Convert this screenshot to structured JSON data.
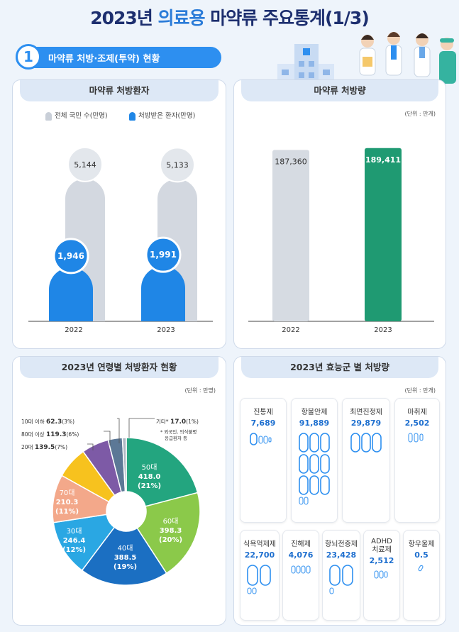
{
  "page": {
    "title_prefix": "2023년",
    "title_highlight": "의료용",
    "title_suffix": "마약류 주요통계(1/3)"
  },
  "section": {
    "number": "1",
    "label": "마약류 처방·조제(투약) 현황"
  },
  "patients": {
    "title": "마약류 처방환자",
    "legend_total": "전체 국민 수(만명)",
    "legend_rx": "처방받은 환자(만명)",
    "years": [
      "2022",
      "2023"
    ],
    "total": [
      "5,144",
      "5,133"
    ],
    "rx": [
      "1,946",
      "1,991"
    ]
  },
  "volume": {
    "title": "마약류 처방량",
    "unit": "(단위 : 만개)",
    "years": [
      "2022",
      "2023"
    ],
    "values": [
      "187,360",
      "189,411"
    ]
  },
  "age": {
    "title": "2023년 연령별 처방환자 현황",
    "unit": "(단위 : 만명)",
    "other_label": "기타*",
    "other_value": "17.0",
    "other_pct": "(1%)",
    "other_note1": "* 외국인, 의식불명",
    "other_note2": "응급환자 등",
    "outside": [
      {
        "label": "10대 이하",
        "value": "62.3",
        "pct": "(3%)"
      },
      {
        "label": "80대 이상",
        "value": "119.3",
        "pct": "(6%)"
      },
      {
        "label": "20대",
        "value": "139.5",
        "pct": "(7%)"
      }
    ],
    "inside": [
      {
        "label": "50대",
        "value": "418.0",
        "pct": "(21%)"
      },
      {
        "label": "60대",
        "value": "398.3",
        "pct": "(20%)"
      },
      {
        "label": "40대",
        "value": "388.5",
        "pct": "(19%)"
      },
      {
        "label": "30대",
        "value": "246.4",
        "pct": "(12%)"
      },
      {
        "label": "70대",
        "value": "210.3",
        "pct": "(11%)"
      }
    ]
  },
  "efficacy": {
    "title": "2023년 효능군 별 처방량",
    "unit": "(단위 : 만개)",
    "items": [
      {
        "name": "진통제",
        "value": "7,689"
      },
      {
        "name": "항불안제",
        "value": "91,889"
      },
      {
        "name": "최면진정제",
        "value": "29,879"
      },
      {
        "name": "마취제",
        "value": "2,502"
      },
      {
        "name": "식욕억제제",
        "value": "22,700"
      },
      {
        "name": "진해제",
        "value": "4,076"
      },
      {
        "name": "항뇌전증제",
        "value": "23,428"
      },
      {
        "name": "ADHD 치료제",
        "value": "2,512"
      },
      {
        "name": "항우울제",
        "value": "0.5"
      }
    ]
  },
  "chart_data": [
    {
      "type": "bar",
      "title": "마약류 처방환자",
      "categories": [
        "2022",
        "2023"
      ],
      "series": [
        {
          "name": "전체 국민 수(만명)",
          "values": [
            5144,
            5133
          ]
        },
        {
          "name": "처방받은 환자(만명)",
          "values": [
            1946,
            1991
          ]
        }
      ]
    },
    {
      "type": "bar",
      "title": "마약류 처방량",
      "categories": [
        "2022",
        "2023"
      ],
      "values": [
        187360,
        189411
      ]
    },
    {
      "type": "pie",
      "title": "2023년 연령별 처방환자 현황",
      "categories": [
        "50대",
        "60대",
        "40대",
        "30대",
        "70대",
        "20대",
        "80대 이상",
        "10대 이하",
        "기타*"
      ],
      "values": [
        418.0,
        398.3,
        388.5,
        246.4,
        210.3,
        139.5,
        119.3,
        62.3,
        17.0
      ],
      "colors": [
        "#23a57f",
        "#8bc94a",
        "#1b6fc2",
        "#2aa7e3",
        "#f3a88a",
        "#f7c21e",
        "#7d5aa6",
        "#5c7896",
        "#b0b8c4"
      ]
    },
    {
      "type": "bar",
      "title": "2023년 효능군 별 처방량",
      "categories": [
        "진통제",
        "항불안제",
        "최면진정제",
        "마취제",
        "식욕억제제",
        "진해제",
        "항뇌전증제",
        "ADHD 치료제",
        "항우울제"
      ],
      "values": [
        7689,
        91889,
        29879,
        2502,
        22700,
        4076,
        23428,
        2512,
        0.5
      ]
    }
  ]
}
